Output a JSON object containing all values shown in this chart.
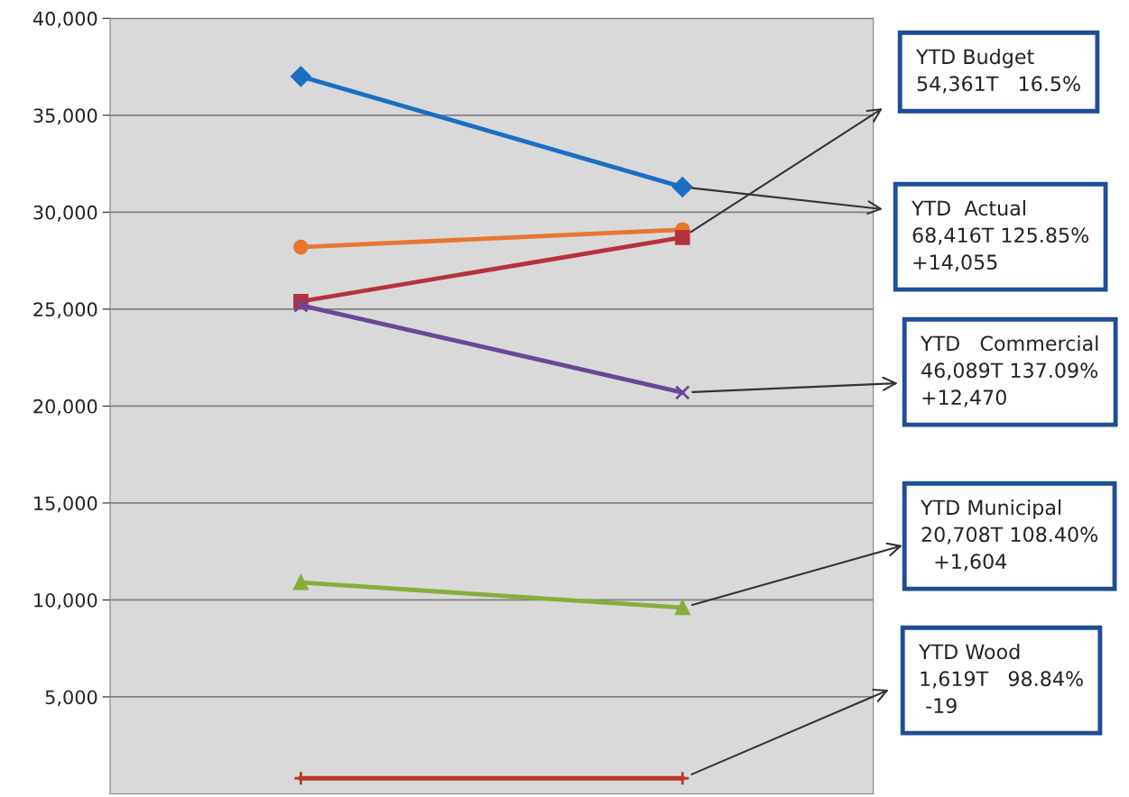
{
  "chart_data": {
    "type": "line",
    "categories": [
      null,
      null
    ],
    "series": [
      {
        "color": "#1b6fc2",
        "marker": "diamond",
        "values": [
          37000,
          31300
        ]
      },
      {
        "color": "#e8762d",
        "marker": "circle",
        "values": [
          28200,
          29100
        ]
      },
      {
        "color": "#b5323e",
        "marker": "square",
        "values": [
          25400,
          28700
        ]
      },
      {
        "color": "#6b4696",
        "marker": "cross",
        "values": [
          25200,
          20700
        ]
      },
      {
        "color": "#86ad3a",
        "marker": "triangle",
        "values": [
          10900,
          9600
        ]
      },
      {
        "color": "#b83a26",
        "marker": "plus",
        "values": [
          800,
          800
        ]
      }
    ],
    "ylim": [
      0,
      40000
    ],
    "yticks": [
      {
        "value": 5000,
        "label": "5,000"
      },
      {
        "value": 10000,
        "label": "10,000"
      },
      {
        "value": 15000,
        "label": "15,000"
      },
      {
        "value": 20000,
        "label": "20,000"
      },
      {
        "value": 25000,
        "label": "25,000"
      },
      {
        "value": 30000,
        "label": "30,000"
      },
      {
        "value": 35000,
        "label": "35,000"
      },
      {
        "value": 40000,
        "label": "40,000"
      }
    ],
    "grid": "y",
    "legend": false,
    "annotations": [
      "YTD Budget\n54,361T   16.5%",
      "YTD  Actual\n68,416T 125.85%\n+14,055",
      "YTD   Commercial\n46,089T 137.09%\n+12,470",
      "YTD Municipal\n20,708T 108.40%\n  +1,604",
      "YTD Wood\n1,619T   98.84%\n -19"
    ]
  }
}
